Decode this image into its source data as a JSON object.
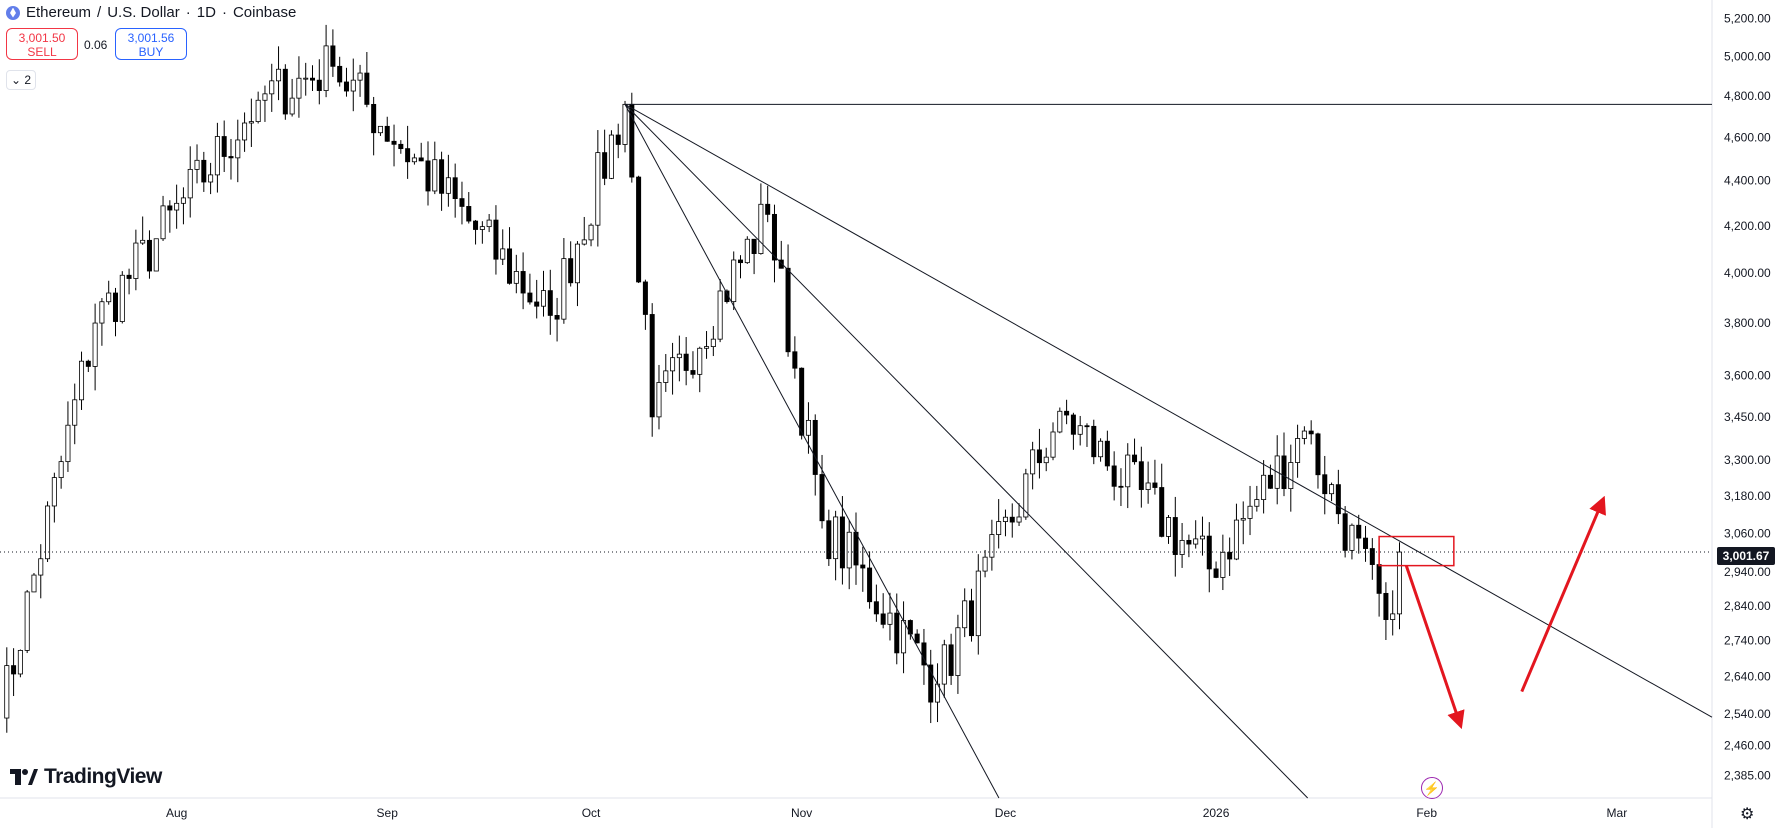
{
  "header": {
    "symbol": "Ethereum",
    "quote": "U.S. Dollar",
    "interval": "1D",
    "exchange": "Coinbase"
  },
  "trade": {
    "sell_price": "3,001.50",
    "sell_label": "SELL",
    "buy_price": "3,001.56",
    "buy_label": "BUY",
    "spread": "0.06"
  },
  "indicators_toggle": "2",
  "brand": "TradingView",
  "last_price_label": "3,001.67",
  "colors": {
    "up_candle": "#ffffff",
    "down_candle": "#000000",
    "annotation": "#e3161f",
    "brand_text": "#131722"
  },
  "chart_data": {
    "type": "candlestick",
    "title": "Ethereum / U.S. Dollar · 1D · Coinbase",
    "x_ticks": [
      "Aug",
      "Sep",
      "Oct",
      "Nov",
      "Dec",
      "2026",
      "Feb",
      "Mar"
    ],
    "y_ticks": [
      "5,200.00",
      "5,000.00",
      "4,800.00",
      "4,600.00",
      "4,400.00",
      "4,200.00",
      "4,000.00",
      "3,800.00",
      "3,600.00",
      "3,450.00",
      "3,300.00",
      "3,180.00",
      "3,060.00",
      "2,940.00",
      "2,840.00",
      "2,740.00",
      "2,640.00",
      "2,540.00",
      "2,460.00",
      "2,385.00"
    ],
    "y_scale": "log",
    "ylim": [
      2330,
      5300
    ],
    "xlim": [
      "2025-07-06",
      "2026-03-15"
    ],
    "last_price": 3001.67,
    "key_points": [
      {
        "date": "2025-07-06",
        "price": 2530
      },
      {
        "date": "2025-07-20",
        "price": 3800
      },
      {
        "date": "2025-08-13",
        "price": 4780
      },
      {
        "date": "2025-08-24",
        "price": 4950
      },
      {
        "date": "2025-09-25",
        "price": 3830
      },
      {
        "date": "2025-10-06",
        "price": 4760
      },
      {
        "date": "2025-10-10",
        "price": 3450
      },
      {
        "date": "2025-10-27",
        "price": 4250
      },
      {
        "date": "2025-11-04",
        "price": 3100
      },
      {
        "date": "2025-11-21",
        "price": 2620
      },
      {
        "date": "2025-12-09",
        "price": 3470
      },
      {
        "date": "2025-12-31",
        "price": 2950
      },
      {
        "date": "2026-01-14",
        "price": 3400
      },
      {
        "date": "2026-01-26",
        "price": 2800
      },
      {
        "date": "2026-01-28",
        "price": 3001.67
      }
    ],
    "drawings": {
      "horizontal_level": 4760,
      "fan_origin": {
        "date": "2025-10-06",
        "price": 4760
      },
      "fan_lines": [
        {
          "date": "2025-11-21",
          "price": 2620
        },
        {
          "date": "2025-12-09",
          "price": 3020
        },
        {
          "date": "2026-01-26",
          "price": 3060
        }
      ],
      "zone": {
        "from": "2026-01-25",
        "to": "2026-02-05",
        "low": 2960,
        "high": 3050
      },
      "arrows": [
        {
          "from_date": "2026-01-29",
          "from_price": 2960,
          "to_date": "2026-02-06",
          "to_price": 2510
        },
        {
          "from_date": "2026-02-15",
          "from_price": 2600,
          "to_date": "2026-02-27",
          "to_price": 3170
        }
      ]
    }
  }
}
